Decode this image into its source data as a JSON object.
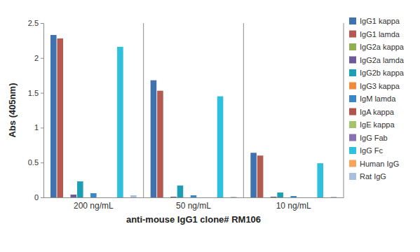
{
  "chart_data": {
    "type": "bar",
    "x_label": "anti-mouse IgG1 clone# RM106",
    "y_label": "Abs (405nm)",
    "categories": [
      "200 ng/mL",
      "50 ng/mL",
      "10 ng/mL"
    ],
    "series": [
      {
        "name": "IgG1 kappa",
        "color": "#3f72ae",
        "values": [
          2.33,
          1.68,
          0.64
        ]
      },
      {
        "name": "IgG1 lamda",
        "color": "#b45a50",
        "values": [
          2.28,
          1.53,
          0.6
        ]
      },
      {
        "name": "IgG2a kappa",
        "color": "#8fb152",
        "values": [
          0,
          0,
          0
        ]
      },
      {
        "name": "IgG2a lamda",
        "color": "#6e5a96",
        "values": [
          0.04,
          0.01,
          0.01
        ]
      },
      {
        "name": "IgG2b kappa",
        "color": "#1c9fb5",
        "values": [
          0.23,
          0.17,
          0.07
        ]
      },
      {
        "name": "IgG3 kappa",
        "color": "#f08a3c",
        "values": [
          0,
          0,
          0
        ]
      },
      {
        "name": "IgM lamda",
        "color": "#3a88c6",
        "values": [
          0.06,
          0.03,
          0.02
        ]
      },
      {
        "name": "IgA kappa",
        "color": "#b2544c",
        "values": [
          0,
          0,
          0
        ]
      },
      {
        "name": "IgE kappa",
        "color": "#a5c46a",
        "values": [
          0,
          0,
          0
        ]
      },
      {
        "name": "IgG Fab",
        "color": "#8a72b0",
        "values": [
          0,
          0,
          0
        ]
      },
      {
        "name": "IgG Fc",
        "color": "#2ec0dc",
        "values": [
          2.16,
          1.45,
          0.49
        ]
      },
      {
        "name": "Human IgG",
        "color": "#f7a45c",
        "values": [
          0,
          0,
          0
        ]
      },
      {
        "name": "Rat IgG",
        "color": "#a9c0dc",
        "values": [
          0.03,
          0.01,
          0.01
        ]
      }
    ],
    "ylim": [
      0,
      2.5
    ],
    "yticks": [
      0,
      0.5,
      1,
      1.5,
      2,
      2.5
    ],
    "grid": false,
    "legend": "right"
  }
}
